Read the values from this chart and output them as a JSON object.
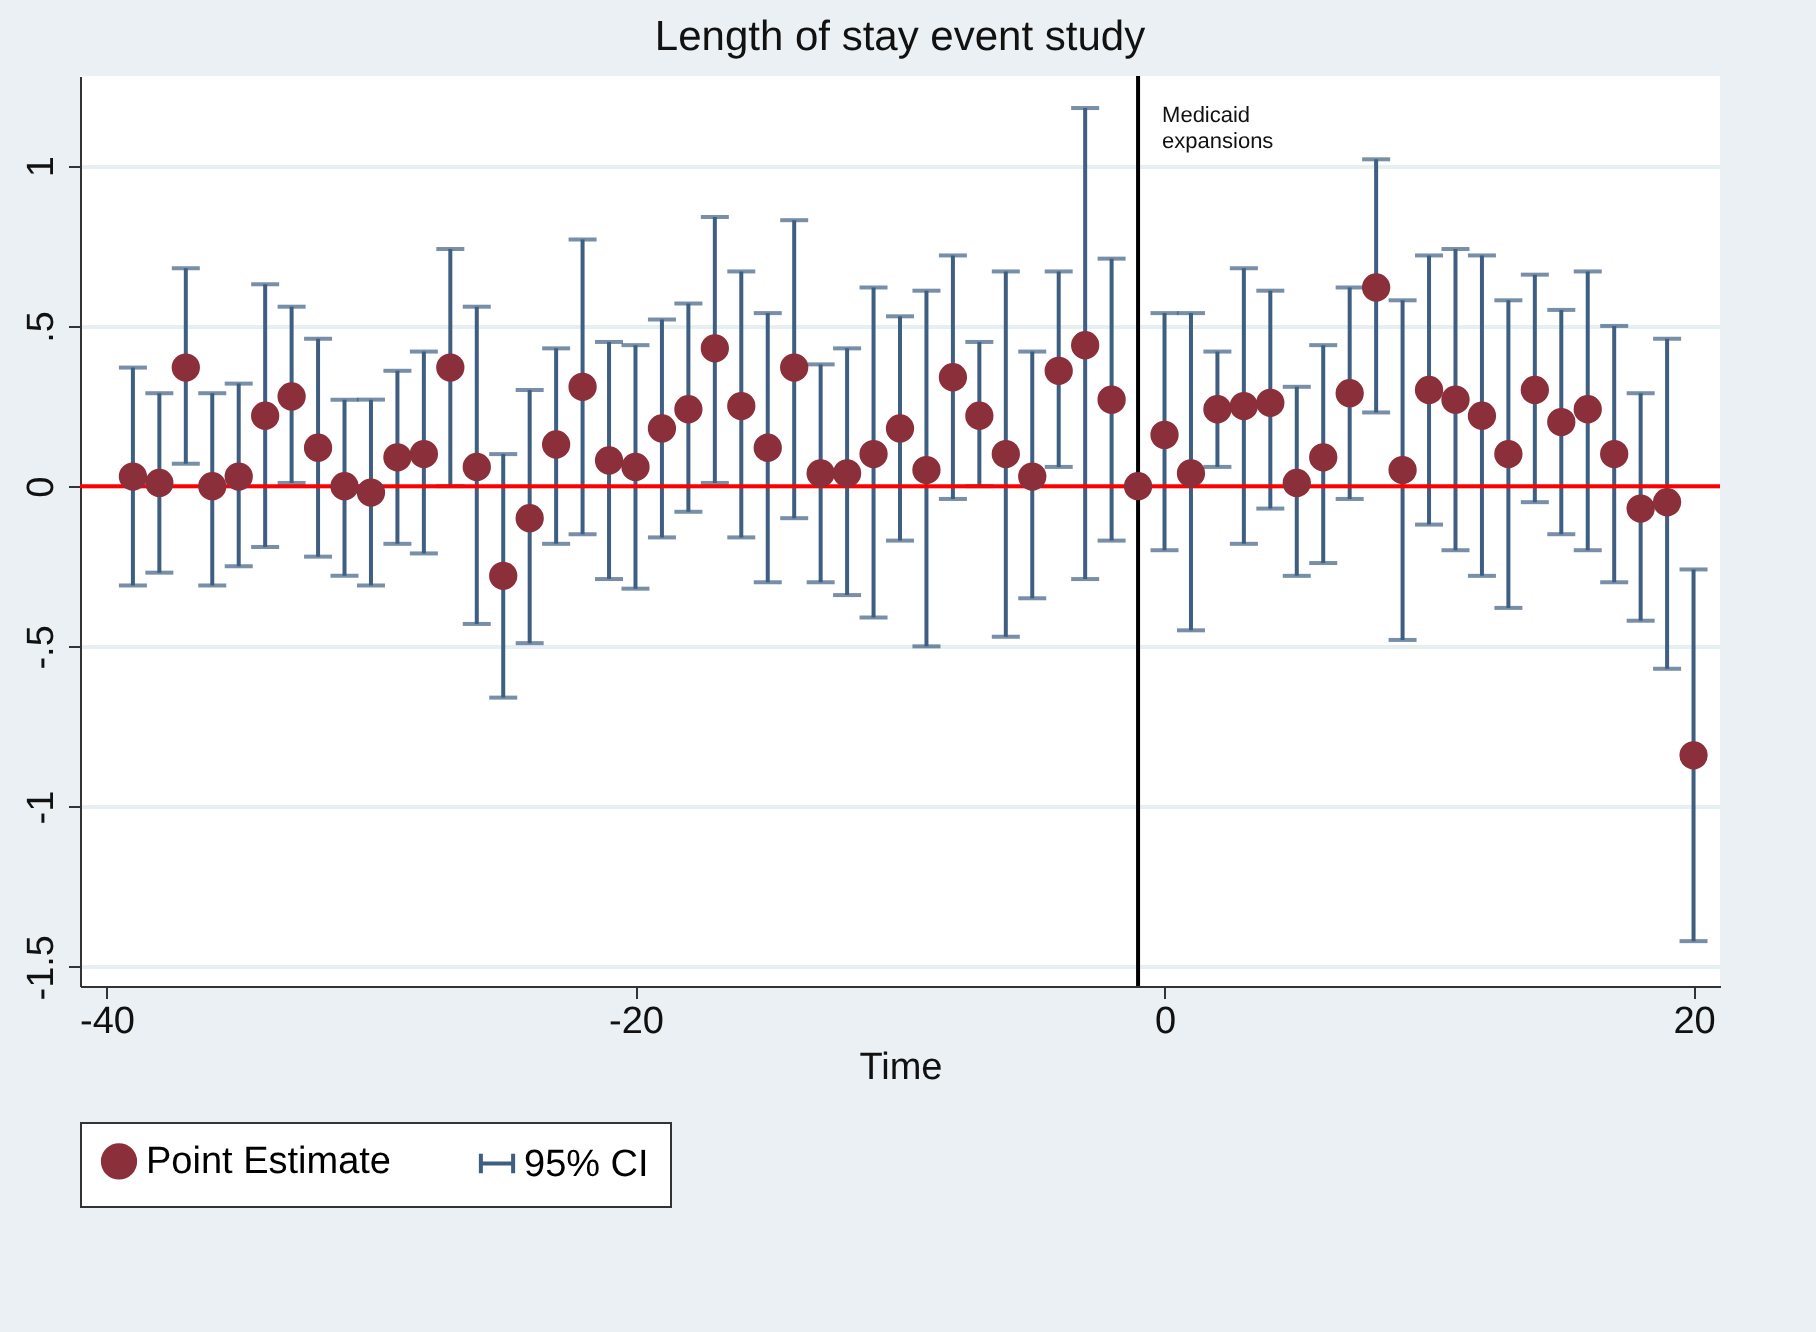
{
  "chart_data": {
    "type": "scatter",
    "title": "Length of stay event study",
    "xlabel": "Time",
    "x": [
      -39,
      -38,
      -37,
      -36,
      -35,
      -34,
      -33,
      -32,
      -31,
      -30,
      -29,
      -28,
      -27,
      -26,
      -25,
      -24,
      -23,
      -22,
      -21,
      -20,
      -19,
      -18,
      -17,
      -16,
      -15,
      -14,
      -13,
      -12,
      -11,
      -10,
      -9,
      -8,
      -7,
      -6,
      -5,
      -4,
      -3,
      -2,
      -1,
      0,
      1,
      2,
      3,
      4,
      5,
      6,
      7,
      8,
      9,
      10,
      11,
      12,
      13,
      14,
      15,
      16,
      17,
      18,
      19,
      20
    ],
    "series": [
      {
        "name": "Point Estimate",
        "color": "#8b2f3a",
        "values": [
          0.03,
          0.01,
          0.37,
          0.0,
          0.03,
          0.22,
          0.28,
          0.12,
          0.0,
          -0.02,
          0.09,
          0.1,
          0.37,
          0.06,
          -0.28,
          -0.1,
          0.13,
          0.31,
          0.08,
          0.06,
          0.18,
          0.24,
          0.43,
          0.25,
          0.12,
          0.37,
          0.04,
          0.04,
          0.1,
          0.18,
          0.05,
          0.34,
          0.22,
          0.1,
          0.03,
          0.36,
          0.44,
          0.27,
          0,
          0.16,
          0.04,
          0.24,
          0.25,
          0.26,
          0.01,
          0.09,
          0.29,
          0.62,
          0.05,
          0.3,
          0.27,
          0.22,
          0.1,
          0.3,
          0.2,
          0.24,
          0.1,
          -0.07,
          -0.05,
          -0.84
        ],
        "errors": [
          [
            -0.31,
            0.37
          ],
          [
            -0.27,
            0.29
          ],
          [
            0.07,
            0.68
          ],
          [
            -0.31,
            0.29
          ],
          [
            -0.25,
            0.32
          ],
          [
            -0.19,
            0.63
          ],
          [
            0.01,
            0.56
          ],
          [
            -0.22,
            0.46
          ],
          [
            -0.28,
            0.27
          ],
          [
            -0.31,
            0.27
          ],
          [
            -0.18,
            0.36
          ],
          [
            -0.21,
            0.42
          ],
          [
            0.0,
            0.74
          ],
          [
            -0.43,
            0.56
          ],
          [
            -0.66,
            0.1
          ],
          [
            -0.49,
            0.3
          ],
          [
            -0.18,
            0.43
          ],
          [
            -0.15,
            0.77
          ],
          [
            -0.29,
            0.45
          ],
          [
            -0.32,
            0.44
          ],
          [
            -0.16,
            0.52
          ],
          [
            -0.08,
            0.57
          ],
          [
            0.01,
            0.84
          ],
          [
            -0.16,
            0.67
          ],
          [
            -0.3,
            0.54
          ],
          [
            -0.1,
            0.83
          ],
          [
            -0.3,
            0.38
          ],
          [
            -0.34,
            0.43
          ],
          [
            -0.41,
            0.62
          ],
          [
            -0.17,
            0.53
          ],
          [
            -0.5,
            0.61
          ],
          [
            -0.04,
            0.72
          ],
          [
            0.0,
            0.45
          ],
          [
            -0.47,
            0.67
          ],
          [
            -0.35,
            0.42
          ],
          [
            0.06,
            0.67
          ],
          [
            -0.29,
            1.18
          ],
          [
            -0.17,
            0.71
          ],
          null,
          [
            -0.2,
            0.54
          ],
          [
            -0.45,
            0.54
          ],
          [
            0.06,
            0.42
          ],
          [
            -0.18,
            0.68
          ],
          [
            -0.07,
            0.61
          ],
          [
            -0.28,
            0.31
          ],
          [
            -0.24,
            0.44
          ],
          [
            -0.04,
            0.62
          ],
          [
            0.23,
            1.02
          ],
          [
            -0.48,
            0.58
          ],
          [
            -0.12,
            0.72
          ],
          [
            -0.2,
            0.74
          ],
          [
            -0.28,
            0.72
          ],
          [
            -0.38,
            0.58
          ],
          [
            -0.05,
            0.66
          ],
          [
            -0.15,
            0.55
          ],
          [
            -0.2,
            0.67
          ],
          [
            -0.3,
            0.5
          ],
          [
            -0.42,
            0.29
          ],
          [
            -0.57,
            0.46
          ],
          [
            -1.42,
            -0.26
          ]
        ]
      }
    ],
    "annotations": [
      "95% CI"
    ],
    "xlim": [
      -41,
      21
    ],
    "xticks": [
      -40,
      -20,
      0,
      20
    ],
    "ylim": [
      -1.56,
      1.28
    ],
    "yticks": [
      {
        "value": -1.5,
        "label": "-1.5"
      },
      -1,
      {
        "value": -0.5,
        "label": "-.5"
      },
      0,
      {
        "value": 0.5,
        "label": ".5"
      },
      1
    ],
    "ref_lines": [
      {
        "axis": "y",
        "value": 0,
        "color": "#ff0000"
      },
      {
        "axis": "x",
        "value": -1,
        "label": "Medicaid expansions",
        "color": "#000000"
      }
    ],
    "grid": "y",
    "legend": "bottom",
    "marker": "circle"
  }
}
